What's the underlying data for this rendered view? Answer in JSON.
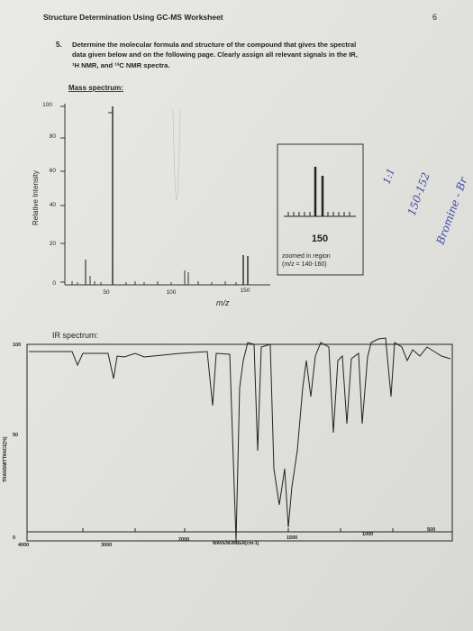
{
  "header": {
    "title": "Structure Determination Using GC-MS Worksheet",
    "page_number": "6"
  },
  "question": {
    "number": "5.",
    "lines": [
      "Determine the molecular formula and structure of the compound that gives the spectral",
      "data given below and on the following page.  Clearly assign all relevant signals in the IR,",
      "¹H NMR, and ¹³C NMR spectra."
    ]
  },
  "mass_spectrum": {
    "heading": "Mass spectrum:",
    "y_label": "Relative Intensity",
    "y_ticks": [
      "100",
      "80",
      "60",
      "40",
      "20",
      "0"
    ],
    "x_ticks": [
      "50",
      "100",
      "150"
    ],
    "x_label": "m/z",
    "inset": {
      "peak_label": "150",
      "caption": "zoomed in region",
      "range": "(m/z = 140-160)"
    }
  },
  "handwritten": [
    "1:1",
    "150-152",
    "Bromine - Br"
  ],
  "ir_spectrum": {
    "heading": "IR spectrum:",
    "y_label": "TRANSMITTANCE[%]",
    "y_ticks": [
      "100",
      "50",
      "0"
    ],
    "x_ticks": [
      "4000",
      "3000",
      "2000",
      "1500",
      "1000",
      "500"
    ],
    "x_label": "WAVENUMBER[cm-1]"
  }
}
